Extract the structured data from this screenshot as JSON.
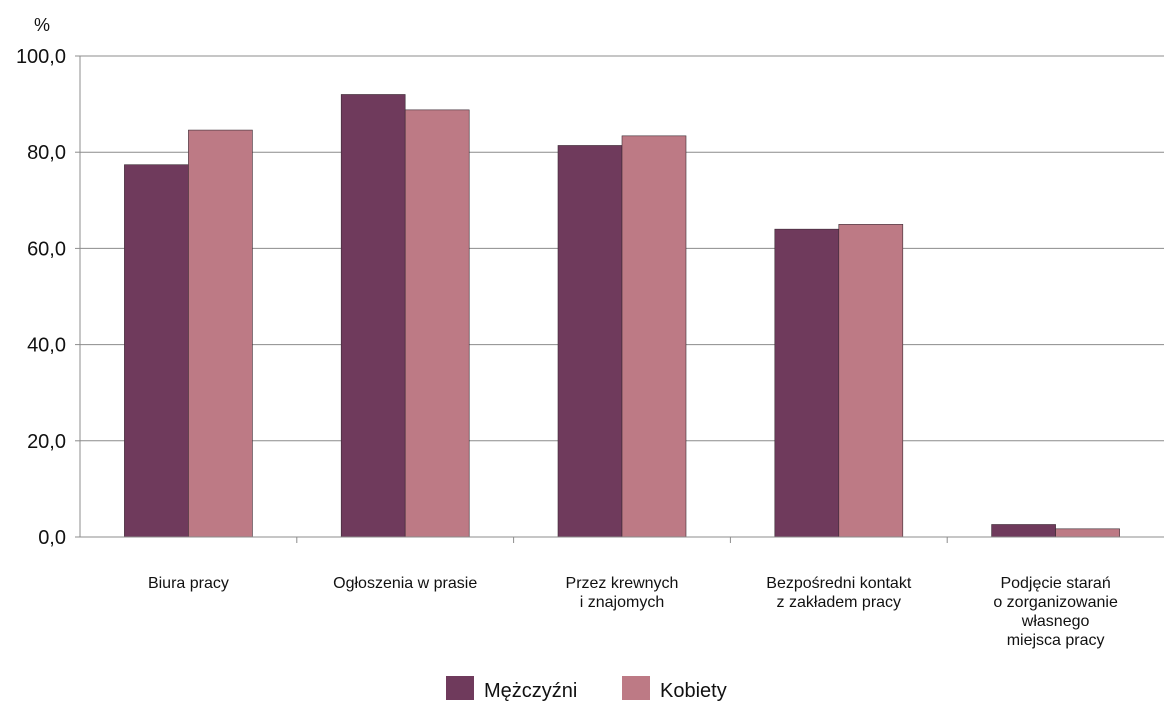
{
  "chart_data": {
    "type": "bar",
    "ylabel": "%",
    "ylim": [
      0,
      100
    ],
    "yticks": [
      "0,0",
      "20,0",
      "40,0",
      "60,0",
      "80,0",
      "100,0"
    ],
    "yticks_values": [
      0,
      20,
      40,
      60,
      80,
      100
    ],
    "grid": true,
    "legend_position": "bottom",
    "categories": [
      [
        "Biura  pracy"
      ],
      [
        "Ogłoszenia w prasie"
      ],
      [
        "Przez krewnych",
        "i znajomych"
      ],
      [
        "Bezpośredni kontakt",
        "z zakładem pracy"
      ],
      [
        "Podjęcie starań",
        "o zorganizowanie",
        "własnego",
        "miejsca pracy"
      ]
    ],
    "series": [
      {
        "name": "Mężczyźni",
        "color": "#6f3a5c",
        "values": [
          77.4,
          92.0,
          81.4,
          64.0,
          2.6
        ]
      },
      {
        "name": "Kobiety",
        "color": "#bd7a85",
        "values": [
          84.6,
          88.8,
          83.4,
          65.0,
          1.7
        ]
      }
    ]
  }
}
